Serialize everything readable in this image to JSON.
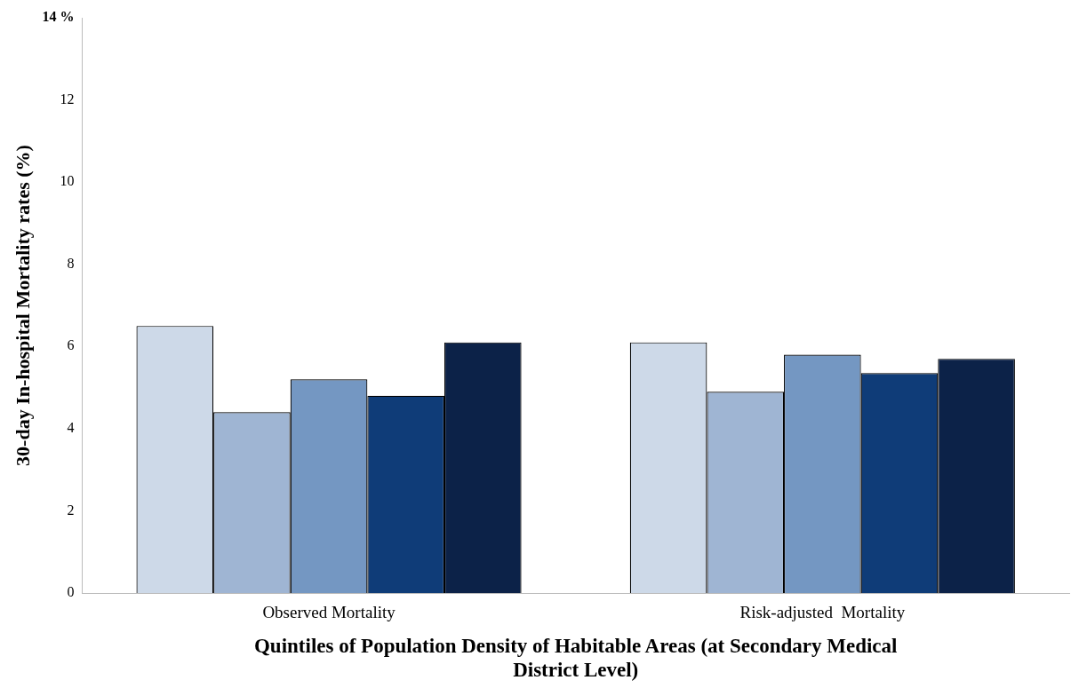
{
  "chart_data": {
    "type": "bar",
    "xlabel": "Quintiles of Population Density of Habitable Areas (at Secondary Medical District Level)",
    "ylabel": "30-day In-hospital Mortality rates (%)",
    "categories": [
      "Observed Mortality",
      "Risk-adjusted  Mortality"
    ],
    "series": [
      {
        "color": "#cdd9e8",
        "values": [
          6.5,
          6.1
        ]
      },
      {
        "color": "#9fb5d3",
        "values": [
          4.4,
          4.9
        ]
      },
      {
        "color": "#7497c2",
        "values": [
          5.2,
          5.8
        ]
      },
      {
        "color": "#0f3c78",
        "values": [
          4.8,
          5.35
        ]
      },
      {
        "color": "#0c2248",
        "values": [
          6.1,
          5.7
        ]
      }
    ],
    "ylim": [
      0,
      14
    ],
    "yticks": [
      0,
      2,
      4,
      6,
      8,
      10,
      12,
      {
        "value": 14,
        "label": "14 %"
      }
    ],
    "grid": false,
    "legend": false
  }
}
